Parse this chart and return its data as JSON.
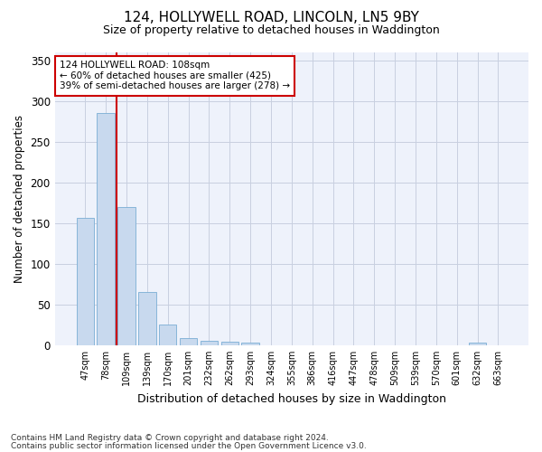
{
  "title": "124, HOLLYWELL ROAD, LINCOLN, LN5 9BY",
  "subtitle": "Size of property relative to detached houses in Waddington",
  "xlabel": "Distribution of detached houses by size in Waddington",
  "ylabel": "Number of detached properties",
  "categories": [
    "47sqm",
    "78sqm",
    "109sqm",
    "139sqm",
    "170sqm",
    "201sqm",
    "232sqm",
    "262sqm",
    "293sqm",
    "324sqm",
    "355sqm",
    "386sqm",
    "416sqm",
    "447sqm",
    "478sqm",
    "509sqm",
    "539sqm",
    "570sqm",
    "601sqm",
    "632sqm",
    "663sqm"
  ],
  "values": [
    156,
    285,
    170,
    65,
    25,
    9,
    6,
    4,
    3,
    0,
    0,
    0,
    0,
    0,
    0,
    0,
    0,
    0,
    0,
    3,
    0
  ],
  "bar_color": "#c8d9ee",
  "bar_edge_color": "#7aadd4",
  "background_color": "#eef2fb",
  "grid_color": "#c8cfe0",
  "red_line_index": 2,
  "annotation_line1": "124 HOLLYWELL ROAD: 108sqm",
  "annotation_line2": "← 60% of detached houses are smaller (425)",
  "annotation_line3": "39% of semi-detached houses are larger (278) →",
  "red_color": "#cc0000",
  "ylim": [
    0,
    360
  ],
  "yticks": [
    0,
    50,
    100,
    150,
    200,
    250,
    300,
    350
  ],
  "footnote1": "Contains HM Land Registry data © Crown copyright and database right 2024.",
  "footnote2": "Contains public sector information licensed under the Open Government Licence v3.0."
}
